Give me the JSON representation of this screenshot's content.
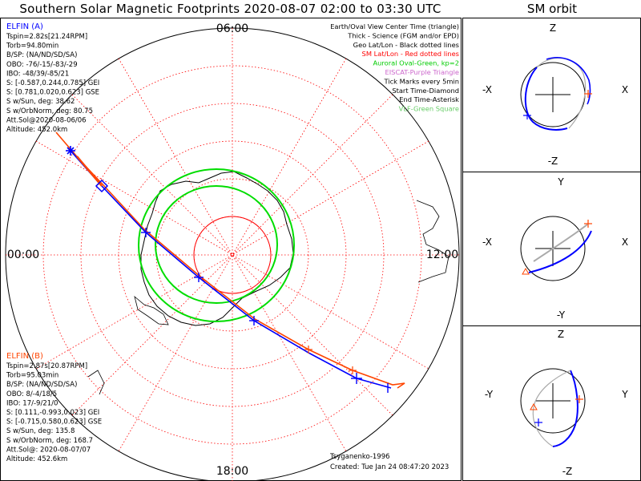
{
  "title": "Southern Solar Magnetic Footprints 2020-08-07 02:00 to 03:30 UTC",
  "orbit_title": "SM orbit",
  "mlt_labels": {
    "top": "06:00",
    "left": "00:00",
    "right": "12:00",
    "bottom": "18:00"
  },
  "legend": [
    {
      "text": "Earth/Oval View Center Time (triangle)",
      "color": "#000000"
    },
    {
      "text": "Thick - Science (FGM and/or EPD)",
      "color": "#000000"
    },
    {
      "text": "Geo Lat/Lon - Black dotted lines",
      "color": "#000000"
    },
    {
      "text": "SM Lat/Lon - Red dotted lines",
      "color": "#ff0000"
    },
    {
      "text": "Auroral Oval-Green, kp=2",
      "color": "#00cc00"
    },
    {
      "text": "EISCAT-Purple Triangle",
      "color": "#cc66cc"
    },
    {
      "text": "Tick Marks every 5min",
      "color": "#000000"
    },
    {
      "text": "Start Time-Diamond",
      "color": "#000000"
    },
    {
      "text": "End Time-Asterisk",
      "color": "#000000"
    },
    {
      "text": "VLF-Green Square",
      "color": "#66cc66"
    }
  ],
  "probe_a": {
    "name": "ELFIN (A)",
    "color": "#0000ff",
    "lines": [
      "Tspin=2.82s[21.24RPM]",
      "Torb=94.80min",
      "B/SP: (NA/ND/SD/SA)",
      "OBO: -76/-15/-83/-29",
      "IBO: -48/39/-85/21",
      "S: [-0.587,0.244,0.785] GEI",
      "S: [0.781,0.020,0.623] GSE",
      "S w/Sun, deg: 38.62",
      "S w/OrbNorm, deg: 80.75",
      "Att.Sol@2020-08-06/06",
      "Altitude: 452.0km"
    ]
  },
  "probe_b": {
    "name": "ELFIN (B)",
    "color": "#ff4400",
    "lines": [
      "Tspin=2.87s[20.87RPM]",
      "Torb=95.03min",
      "B/SP: (NA/ND/SD/SA)",
      "OBO: 8/-4/18/5",
      "IBO: 17/-9/21/0",
      "S: [0.111,-0.993,0.023] GEI",
      "S: [-0.715,0.580,0.623] GSE",
      "S w/Sun, deg: 135.8",
      "S w/OrbNorm, deg: 168.7",
      "Att.Sol@: 2020-08-07/07",
      "Altitude: 452.6km"
    ]
  },
  "footer": {
    "credit": "Tsyganenko-1996",
    "created": "Created: Tue Jan 24 08:47:20 2023"
  },
  "orbit_panels": [
    {
      "top": "Z",
      "bottom": "-Z",
      "left": "-X",
      "right": "X"
    },
    {
      "top": "Y",
      "bottom": "-Y",
      "left": "-X",
      "right": "X"
    },
    {
      "top": "Z",
      "bottom": "-Z",
      "left": "-Y",
      "right": "Y"
    }
  ],
  "colors": {
    "blue": "#0000ff",
    "red": "#ff3300",
    "oval": "#00dd00",
    "grid": "#ff0000",
    "gray": "#aaaaaa"
  }
}
